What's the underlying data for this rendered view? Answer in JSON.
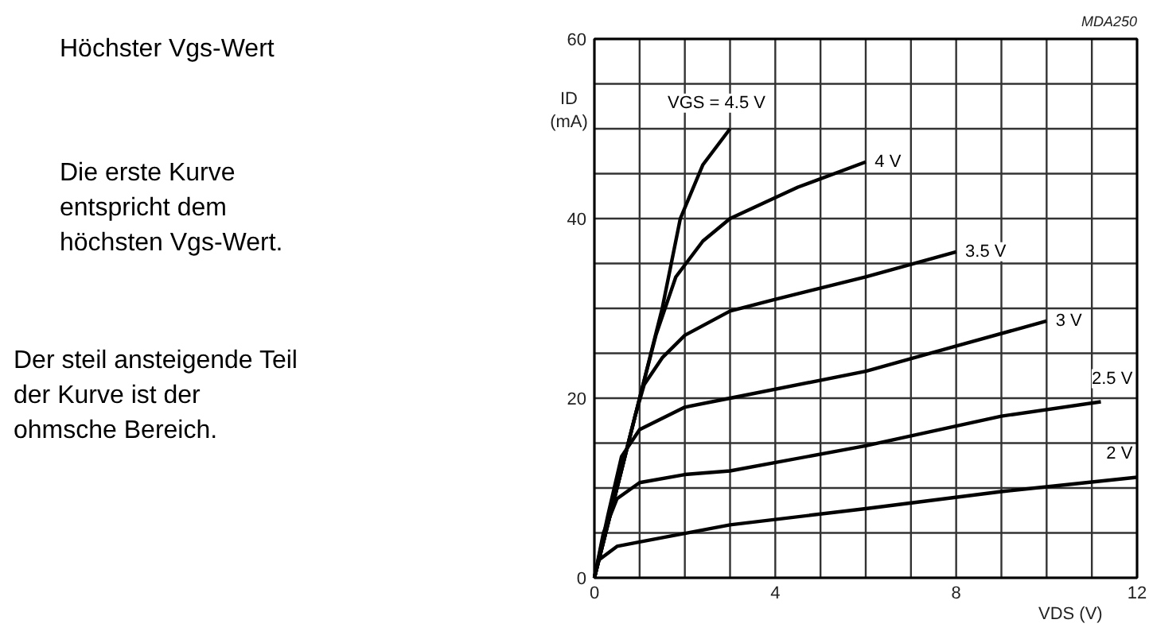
{
  "chart_data": {
    "type": "line",
    "xlabel": "VDS (V)",
    "ylabel": "ID\n(mA)",
    "xlim": [
      0,
      12
    ],
    "ylim": [
      0,
      60
    ],
    "xticks": [
      0,
      {
        "value": 1,
        "label": null
      },
      {
        "value": 2,
        "label": null
      },
      {
        "value": 3,
        "label": null
      },
      4,
      {
        "value": 5,
        "label": null
      },
      {
        "value": 6,
        "label": null
      },
      {
        "value": 7,
        "label": null
      },
      8,
      {
        "value": 9,
        "label": null
      },
      {
        "value": 10,
        "label": null
      },
      {
        "value": 11,
        "label": null
      },
      12
    ],
    "yticks": [
      0,
      {
        "value": 5,
        "label": null
      },
      {
        "value": 10,
        "label": null
      },
      {
        "value": 15,
        "label": null
      },
      20,
      {
        "value": 25,
        "label": null
      },
      {
        "value": 30,
        "label": null
      },
      {
        "value": 35,
        "label": null
      },
      40,
      {
        "value": 45,
        "label": null
      },
      {
        "value": 50,
        "label": null
      },
      {
        "value": 55,
        "label": null
      },
      60
    ],
    "grid": true,
    "line_style": "solid",
    "marker": "none",
    "series": [
      {
        "name": "VGS = 4.5 V",
        "color": "#000000",
        "x": [
          0,
          0.3,
          0.6,
          1.0,
          1.5,
          1.9,
          2.4,
          3
        ],
        "values": [
          0,
          6,
          12,
          20,
          30,
          40,
          46,
          50
        ]
      },
      {
        "name": "4 V",
        "color": "#000000",
        "x": [
          0,
          0.3,
          0.6,
          1.0,
          1.36,
          1.8,
          2.4,
          3,
          4.5,
          6
        ],
        "values": [
          0,
          6,
          12,
          20,
          27,
          33.5,
          37.5,
          40,
          43.5,
          46.3
        ]
      },
      {
        "name": "3.5 V",
        "color": "#000000",
        "x": [
          0,
          0.3,
          0.6,
          0.9,
          1.1,
          1.5,
          2,
          3,
          4,
          6,
          8
        ],
        "values": [
          0,
          6,
          12,
          18,
          21.5,
          24.5,
          27,
          29.7,
          31,
          33.5,
          36.3
        ]
      },
      {
        "name": "3 V",
        "color": "#000000",
        "x": [
          0,
          0.3,
          0.6,
          1,
          2,
          3,
          6,
          8,
          10
        ],
        "values": [
          0,
          7,
          13.5,
          16.5,
          19,
          20,
          23,
          25.8,
          28.6
        ]
      },
      {
        "name": "2.5 V",
        "color": "#000000",
        "x": [
          0,
          0.2,
          0.5,
          1,
          2,
          3,
          6,
          9,
          11.2
        ],
        "values": [
          0,
          5,
          8.8,
          10.6,
          11.5,
          11.9,
          14.7,
          18,
          19.6
        ]
      },
      {
        "name": "2 V",
        "color": "#000000",
        "x": [
          0,
          0.1,
          0.5,
          1,
          3,
          6,
          9,
          12
        ],
        "values": [
          0,
          2,
          3.5,
          4,
          5.9,
          7.7,
          9.6,
          11.2
        ]
      }
    ],
    "annotations": [
      "MDA250",
      "Höchster Vgs-Wert",
      "Die erste Kurve\nentspricht dem\nhöchsten Vgs-Wert.",
      "Der steil ansteigende Teil\nder Kurve ist der\nohmsche Bereich."
    ]
  }
}
